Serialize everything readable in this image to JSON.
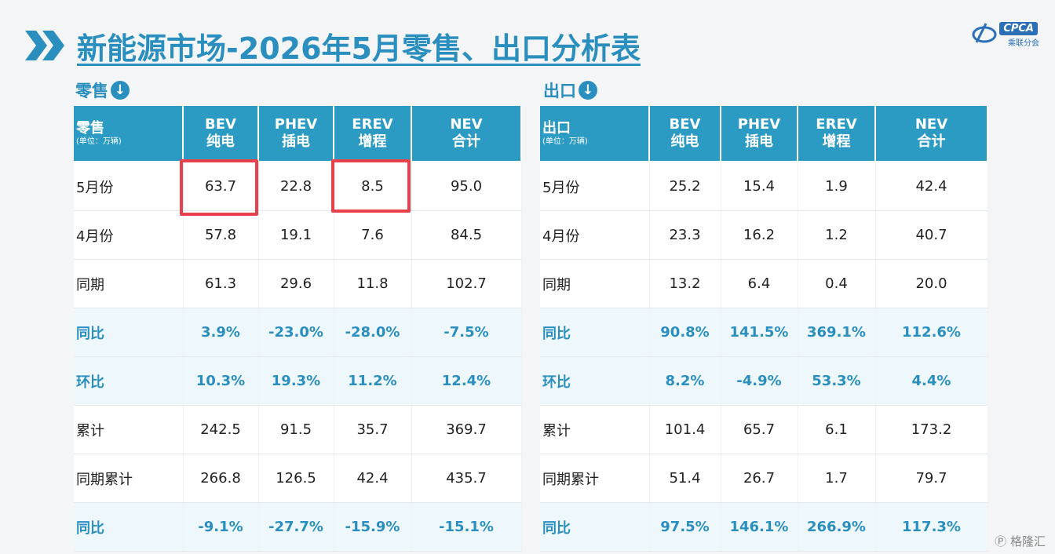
{
  "header": {
    "title": "新能源市场-2026年5月零售、出口分析表",
    "logo_text": "CPCA",
    "logo_sub": "乘联分会"
  },
  "retail": {
    "section_label": "零售",
    "header_title": "零售",
    "header_unit": "(单位：万辆)",
    "columns": [
      {
        "code": "BEV",
        "name": "纯电"
      },
      {
        "code": "PHEV",
        "name": "插电"
      },
      {
        "code": "EREV",
        "name": "增程"
      },
      {
        "code": "NEV",
        "name": "合计"
      }
    ],
    "rows": [
      {
        "label": "5月份",
        "values": [
          "63.7",
          "22.8",
          "8.5",
          "95.0"
        ]
      },
      {
        "label": "4月份",
        "values": [
          "57.8",
          "19.1",
          "7.6",
          "84.5"
        ]
      },
      {
        "label": "同期",
        "values": [
          "61.3",
          "29.6",
          "11.8",
          "102.7"
        ]
      },
      {
        "label": "同比",
        "values": [
          "3.9%",
          "-23.0%",
          "-28.0%",
          "-7.5%"
        ]
      },
      {
        "label": "环比",
        "values": [
          "10.3%",
          "19.3%",
          "11.2%",
          "12.4%"
        ]
      },
      {
        "label": "累计",
        "values": [
          "242.5",
          "91.5",
          "35.7",
          "369.7"
        ]
      },
      {
        "label": "同期累计",
        "values": [
          "266.8",
          "126.5",
          "42.4",
          "435.7"
        ]
      },
      {
        "label": "同比",
        "values": [
          "-9.1%",
          "-27.7%",
          "-15.9%",
          "-15.1%"
        ]
      }
    ]
  },
  "export": {
    "section_label": "出口",
    "header_title": "出口",
    "header_unit": "(单位：万辆)",
    "columns": [
      {
        "code": "BEV",
        "name": "纯电"
      },
      {
        "code": "PHEV",
        "name": "插电"
      },
      {
        "code": "EREV",
        "name": "增程"
      },
      {
        "code": "NEV",
        "name": "合计"
      }
    ],
    "rows": [
      {
        "label": "5月份",
        "values": [
          "25.2",
          "15.4",
          "1.9",
          "42.4"
        ]
      },
      {
        "label": "4月份",
        "values": [
          "23.3",
          "16.2",
          "1.2",
          "40.7"
        ]
      },
      {
        "label": "同期",
        "values": [
          "13.2",
          "6.4",
          "0.4",
          "20.0"
        ]
      },
      {
        "label": "同比",
        "values": [
          "90.8%",
          "141.5%",
          "369.1%",
          "112.6%"
        ]
      },
      {
        "label": "环比",
        "values": [
          "8.2%",
          "-4.9%",
          "53.3%",
          "4.4%"
        ]
      },
      {
        "label": "累计",
        "values": [
          "101.4",
          "65.7",
          "6.1",
          "173.2"
        ]
      },
      {
        "label": "同期累计",
        "values": [
          "51.4",
          "26.7",
          "1.7",
          "79.7"
        ]
      },
      {
        "label": "同比",
        "values": [
          "97.5%",
          "146.1%",
          "266.9%",
          "117.3%"
        ]
      }
    ]
  },
  "corner_mark": "格隆汇",
  "colors": {
    "accent": "#2a8fbf",
    "header_bg": "#2b9bc4",
    "highlight_box": "#e8414b",
    "highlight_row_bg": "#eef7fb"
  },
  "icons": [
    "double-chevron-icon",
    "down-arrow-circle-icon",
    "cpca-logo-icon"
  ]
}
